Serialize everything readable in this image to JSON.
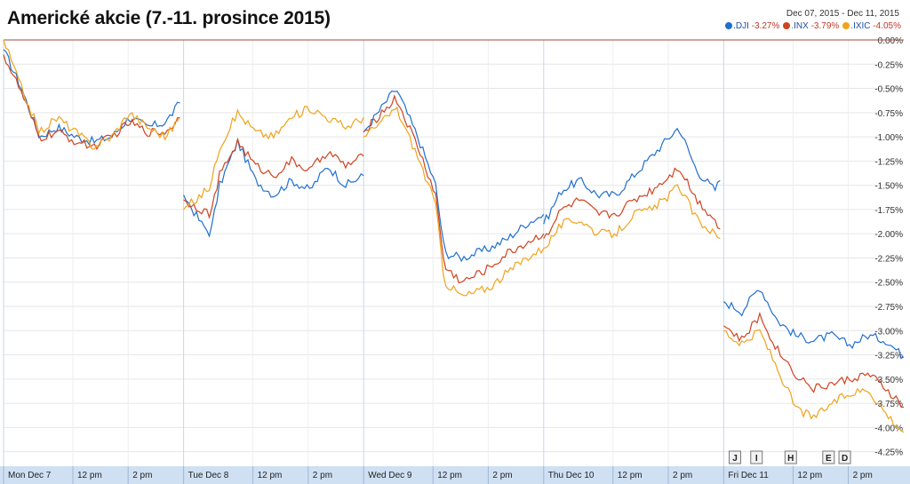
{
  "chart_data": {
    "type": "line",
    "title": "Americké akcie (7.-11. prosince 2015)",
    "date_range": {
      "from": "Dec 07, 2015",
      "sep": "-",
      "to": "Dec 11, 2015"
    },
    "ylim": [
      -4.4,
      0.0
    ],
    "yticks": [
      "0.00%",
      "-0.25%",
      "-0.50%",
      "-0.75%",
      "-1.00%",
      "-1.25%",
      "-1.50%",
      "-1.75%",
      "-2.00%",
      "-2.25%",
      "-2.50%",
      "-2.75%",
      "-3.00%",
      "-3.25%",
      "-3.50%",
      "-3.75%",
      "-4.00%",
      "-4.25%"
    ],
    "x_labels": [
      {
        "t": 0.0,
        "label": "Mon Dec 7"
      },
      {
        "t": 0.385,
        "label": "12 pm"
      },
      {
        "t": 0.692,
        "label": "2 pm"
      },
      {
        "t": 1.0,
        "label": "Tue Dec 8"
      },
      {
        "t": 1.385,
        "label": "12 pm"
      },
      {
        "t": 1.692,
        "label": "2 pm"
      },
      {
        "t": 2.0,
        "label": "Wed Dec 9"
      },
      {
        "t": 2.385,
        "label": "12 pm"
      },
      {
        "t": 2.692,
        "label": "2 pm"
      },
      {
        "t": 3.0,
        "label": "Thu Dec 10"
      },
      {
        "t": 3.385,
        "label": "12 pm"
      },
      {
        "t": 3.692,
        "label": "2 pm"
      },
      {
        "t": 4.0,
        "label": "Fri Dec 11"
      },
      {
        "t": 4.385,
        "label": "12 pm"
      },
      {
        "t": 4.692,
        "label": "2 pm"
      }
    ],
    "grid": true,
    "legend_position": "top-right",
    "news_flags": [
      {
        "t": 4.03,
        "label": "J"
      },
      {
        "t": 4.15,
        "label": "I"
      },
      {
        "t": 4.34,
        "label": "H"
      },
      {
        "t": 4.55,
        "label": "E"
      },
      {
        "t": 4.64,
        "label": "D"
      }
    ],
    "series": [
      {
        "name": ".DJI",
        "change": "-3.27%",
        "color": "#1f6fd0",
        "days": [
          [
            [
              0.0,
              -0.1
            ],
            [
              0.1,
              -0.5
            ],
            [
              0.2,
              -1.0
            ],
            [
              0.3,
              -0.9
            ],
            [
              0.4,
              -1.0
            ],
            [
              0.5,
              -1.05
            ],
            [
              0.6,
              -1.0
            ],
            [
              0.7,
              -0.8
            ],
            [
              0.8,
              -0.9
            ],
            [
              0.9,
              -0.85
            ],
            [
              0.98,
              -0.65
            ]
          ],
          [
            [
              0.0,
              -1.6
            ],
            [
              0.1,
              -1.9
            ],
            [
              0.15,
              -2.0
            ],
            [
              0.2,
              -1.5
            ],
            [
              0.3,
              -1.05
            ],
            [
              0.4,
              -1.45
            ],
            [
              0.5,
              -1.6
            ],
            [
              0.6,
              -1.45
            ],
            [
              0.7,
              -1.55
            ],
            [
              0.8,
              -1.3
            ],
            [
              0.9,
              -1.5
            ],
            [
              1.0,
              -1.4
            ]
          ],
          [
            [
              0.0,
              -0.95
            ],
            [
              0.1,
              -0.7
            ],
            [
              0.18,
              -0.5
            ],
            [
              0.3,
              -1.0
            ],
            [
              0.4,
              -1.5
            ],
            [
              0.45,
              -2.2
            ],
            [
              0.55,
              -2.25
            ],
            [
              0.7,
              -2.15
            ],
            [
              0.8,
              -2.05
            ],
            [
              0.9,
              -1.9
            ],
            [
              1.0,
              -1.8
            ]
          ],
          [
            [
              0.0,
              -1.9
            ],
            [
              0.1,
              -1.55
            ],
            [
              0.2,
              -1.45
            ],
            [
              0.3,
              -1.6
            ],
            [
              0.4,
              -1.6
            ],
            [
              0.5,
              -1.4
            ],
            [
              0.6,
              -1.2
            ],
            [
              0.7,
              -1.0
            ],
            [
              0.75,
              -0.9
            ],
            [
              0.85,
              -1.35
            ],
            [
              0.95,
              -1.55
            ],
            [
              0.98,
              -1.45
            ]
          ],
          [
            [
              0.0,
              -2.7
            ],
            [
              0.1,
              -2.8
            ],
            [
              0.2,
              -2.55
            ],
            [
              0.3,
              -2.9
            ],
            [
              0.4,
              -3.05
            ],
            [
              0.5,
              -3.1
            ],
            [
              0.6,
              -3.05
            ],
            [
              0.7,
              -3.15
            ],
            [
              0.8,
              -3.05
            ],
            [
              0.9,
              -3.1
            ],
            [
              1.0,
              -3.27
            ]
          ]
        ]
      },
      {
        "name": ".INX",
        "change": "-3.79%",
        "color": "#d0431f",
        "days": [
          [
            [
              0.0,
              -0.15
            ],
            [
              0.1,
              -0.55
            ],
            [
              0.2,
              -1.02
            ],
            [
              0.3,
              -0.95
            ],
            [
              0.4,
              -1.05
            ],
            [
              0.5,
              -1.1
            ],
            [
              0.6,
              -1.0
            ],
            [
              0.7,
              -0.85
            ],
            [
              0.8,
              -0.95
            ],
            [
              0.9,
              -0.95
            ],
            [
              0.98,
              -0.8
            ]
          ],
          [
            [
              0.0,
              -1.65
            ],
            [
              0.1,
              -1.75
            ],
            [
              0.15,
              -1.8
            ],
            [
              0.2,
              -1.4
            ],
            [
              0.3,
              -1.05
            ],
            [
              0.4,
              -1.3
            ],
            [
              0.5,
              -1.4
            ],
            [
              0.6,
              -1.25
            ],
            [
              0.7,
              -1.35
            ],
            [
              0.8,
              -1.15
            ],
            [
              0.9,
              -1.3
            ],
            [
              1.0,
              -1.2
            ]
          ],
          [
            [
              0.0,
              -0.95
            ],
            [
              0.1,
              -0.75
            ],
            [
              0.18,
              -0.6
            ],
            [
              0.3,
              -1.1
            ],
            [
              0.4,
              -1.6
            ],
            [
              0.45,
              -2.35
            ],
            [
              0.55,
              -2.5
            ],
            [
              0.7,
              -2.35
            ],
            [
              0.8,
              -2.2
            ],
            [
              0.9,
              -2.1
            ],
            [
              1.0,
              -2.0
            ]
          ],
          [
            [
              0.0,
              -2.05
            ],
            [
              0.1,
              -1.75
            ],
            [
              0.2,
              -1.65
            ],
            [
              0.3,
              -1.8
            ],
            [
              0.4,
              -1.8
            ],
            [
              0.5,
              -1.65
            ],
            [
              0.6,
              -1.55
            ],
            [
              0.7,
              -1.4
            ],
            [
              0.75,
              -1.3
            ],
            [
              0.85,
              -1.65
            ],
            [
              0.95,
              -1.85
            ],
            [
              0.98,
              -1.95
            ]
          ],
          [
            [
              0.0,
              -2.95
            ],
            [
              0.1,
              -3.1
            ],
            [
              0.2,
              -2.85
            ],
            [
              0.3,
              -3.2
            ],
            [
              0.4,
              -3.45
            ],
            [
              0.5,
              -3.6
            ],
            [
              0.6,
              -3.55
            ],
            [
              0.7,
              -3.5
            ],
            [
              0.8,
              -3.45
            ],
            [
              0.9,
              -3.6
            ],
            [
              1.0,
              -3.79
            ]
          ]
        ]
      },
      {
        "name": ".IXIC",
        "change": "-4.05%",
        "color": "#f0a31a",
        "days": [
          [
            [
              0.0,
              0.0
            ],
            [
              0.1,
              -0.5
            ],
            [
              0.2,
              -0.95
            ],
            [
              0.3,
              -0.8
            ],
            [
              0.4,
              -0.95
            ],
            [
              0.5,
              -1.1
            ],
            [
              0.6,
              -1.0
            ],
            [
              0.7,
              -0.75
            ],
            [
              0.8,
              -0.9
            ],
            [
              0.9,
              -1.0
            ],
            [
              0.98,
              -0.8
            ]
          ],
          [
            [
              0.0,
              -1.75
            ],
            [
              0.1,
              -1.6
            ],
            [
              0.15,
              -1.5
            ],
            [
              0.2,
              -1.1
            ],
            [
              0.3,
              -0.75
            ],
            [
              0.4,
              -0.95
            ],
            [
              0.5,
              -1.0
            ],
            [
              0.6,
              -0.8
            ],
            [
              0.7,
              -0.7
            ],
            [
              0.8,
              -0.8
            ],
            [
              0.9,
              -0.9
            ],
            [
              1.0,
              -0.8
            ]
          ],
          [
            [
              0.0,
              -1.0
            ],
            [
              0.1,
              -0.85
            ],
            [
              0.18,
              -0.7
            ],
            [
              0.3,
              -1.2
            ],
            [
              0.4,
              -1.7
            ],
            [
              0.45,
              -2.5
            ],
            [
              0.55,
              -2.65
            ],
            [
              0.7,
              -2.55
            ],
            [
              0.8,
              -2.4
            ],
            [
              0.9,
              -2.25
            ],
            [
              1.0,
              -2.15
            ]
          ],
          [
            [
              0.0,
              -2.15
            ],
            [
              0.1,
              -1.9
            ],
            [
              0.2,
              -1.85
            ],
            [
              0.3,
              -2.0
            ],
            [
              0.4,
              -2.0
            ],
            [
              0.5,
              -1.8
            ],
            [
              0.6,
              -1.75
            ],
            [
              0.7,
              -1.6
            ],
            [
              0.75,
              -1.5
            ],
            [
              0.85,
              -1.85
            ],
            [
              0.95,
              -2.0
            ],
            [
              0.98,
              -2.05
            ]
          ],
          [
            [
              0.0,
              -3.0
            ],
            [
              0.1,
              -3.15
            ],
            [
              0.2,
              -3.0
            ],
            [
              0.3,
              -3.4
            ],
            [
              0.4,
              -3.8
            ],
            [
              0.5,
              -3.9
            ],
            [
              0.6,
              -3.75
            ],
            [
              0.7,
              -3.65
            ],
            [
              0.8,
              -3.6
            ],
            [
              0.9,
              -3.85
            ],
            [
              1.0,
              -4.05
            ]
          ]
        ]
      }
    ]
  }
}
